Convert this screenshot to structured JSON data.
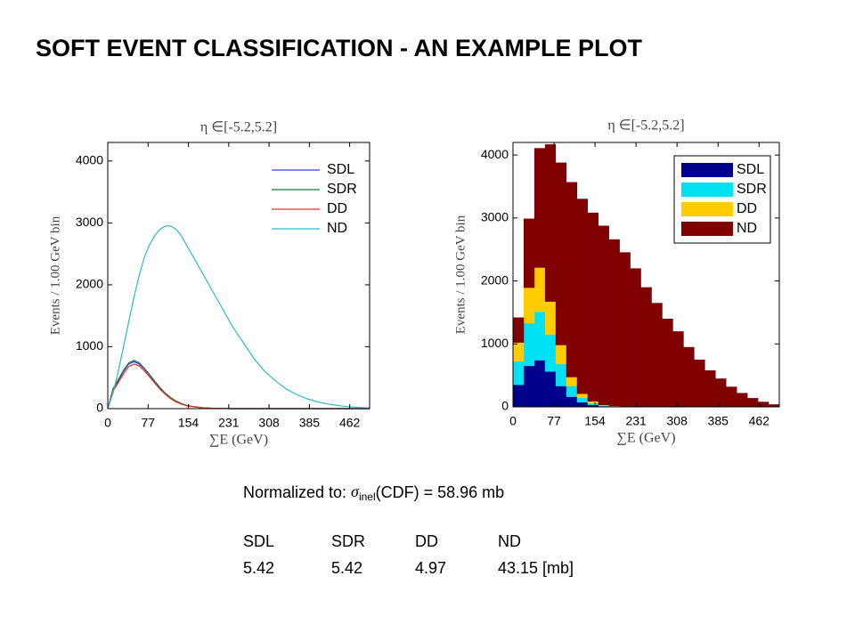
{
  "title": "SOFT EVENT CLASSIFICATION - AN EXAMPLE PLOT",
  "note": {
    "prefix": "Normalized to: ",
    "symbol": "σ",
    "subscript": "inel",
    "suffix": "(CDF) = 58.96 mb"
  },
  "table": {
    "header": [
      "SDL",
      "SDR",
      "DD",
      "ND"
    ],
    "rows": [
      [
        "5.42",
        "5.42",
        "4.97",
        "43.15 [mb]"
      ]
    ]
  },
  "chart_data": [
    {
      "type": "line",
      "title": "η ∈[-5.2,5.2]",
      "x_label": "∑E (GeV)",
      "y_label": "Events / 1.00 GeV bin",
      "x": [
        0,
        10,
        20,
        30,
        40,
        50,
        60,
        70,
        80,
        90,
        100,
        110,
        120,
        130,
        140,
        150,
        160,
        180,
        200,
        220,
        240,
        260,
        280,
        300,
        320,
        340,
        360,
        380,
        400,
        420,
        440,
        460,
        480,
        500
      ],
      "xlim": [
        0,
        500
      ],
      "xticks": [
        0,
        77,
        154,
        231,
        308,
        385,
        462
      ],
      "ylim": [
        0,
        4300
      ],
      "yticks": [
        0,
        1000,
        2000,
        3000,
        4000
      ],
      "legend": "upper right",
      "series": [
        {
          "name": "SDL",
          "color": "#3a3aff",
          "values": [
            0,
            300,
            450,
            600,
            720,
            760,
            720,
            640,
            540,
            430,
            330,
            240,
            170,
            120,
            80,
            50,
            35,
            15,
            5,
            2,
            0,
            0,
            0,
            0,
            0,
            0,
            0,
            0,
            0,
            0,
            0,
            0,
            0,
            0
          ]
        },
        {
          "name": "SDR",
          "color": "#1f7a3a",
          "values": [
            0,
            320,
            470,
            620,
            740,
            780,
            740,
            650,
            550,
            440,
            340,
            250,
            180,
            125,
            85,
            55,
            38,
            16,
            6,
            2,
            0,
            0,
            0,
            0,
            0,
            0,
            0,
            0,
            0,
            0,
            0,
            0,
            0,
            0
          ]
        },
        {
          "name": "DD",
          "color": "#e8312a",
          "values": [
            0,
            280,
            420,
            560,
            680,
            720,
            690,
            610,
            510,
            410,
            310,
            230,
            160,
            110,
            75,
            48,
            32,
            14,
            5,
            2,
            0,
            0,
            0,
            0,
            0,
            0,
            0,
            0,
            0,
            0,
            0,
            0,
            0,
            0
          ]
        },
        {
          "name": "ND",
          "color": "#2bbcc4",
          "values": [
            0,
            250,
            600,
            1000,
            1400,
            1800,
            2150,
            2450,
            2650,
            2800,
            2900,
            2950,
            2950,
            2900,
            2800,
            2650,
            2500,
            2200,
            1900,
            1600,
            1300,
            1050,
            800,
            600,
            450,
            320,
            230,
            160,
            110,
            75,
            50,
            30,
            20,
            10
          ]
        }
      ]
    },
    {
      "type": "histogram",
      "stacked": true,
      "title": "η ∈[-5.2,5.2]",
      "x_label": "∑E (GeV)",
      "y_label": "Events / 1.00 GeV bin",
      "bins": [
        0,
        20,
        40,
        60,
        80,
        100,
        120,
        140,
        160,
        180,
        200,
        220,
        240,
        260,
        280,
        300,
        320,
        340,
        360,
        380,
        400,
        420,
        440,
        460,
        480,
        500
      ],
      "xlim": [
        0,
        500
      ],
      "xticks": [
        0,
        77,
        154,
        231,
        308,
        385,
        462
      ],
      "ylim": [
        0,
        4200
      ],
      "yticks": [
        0,
        1000,
        2000,
        3000,
        4000
      ],
      "legend": "upper right",
      "series": [
        {
          "name": "SDL",
          "color": "#00008b",
          "values": [
            350,
            650,
            740,
            560,
            330,
            160,
            70,
            30,
            10,
            4,
            2,
            0,
            0,
            0,
            0,
            0,
            0,
            0,
            0,
            0,
            0,
            0,
            0,
            0,
            0
          ]
        },
        {
          "name": "SDR",
          "color": "#00e1f5",
          "values": [
            370,
            680,
            770,
            590,
            350,
            170,
            75,
            30,
            10,
            4,
            2,
            0,
            0,
            0,
            0,
            0,
            0,
            0,
            0,
            0,
            0,
            0,
            0,
            0,
            0
          ]
        },
        {
          "name": "DD",
          "color": "#ffcc00",
          "values": [
            300,
            560,
            700,
            520,
            300,
            140,
            60,
            25,
            8,
            3,
            1,
            0,
            0,
            0,
            0,
            0,
            0,
            0,
            0,
            0,
            0,
            0,
            0,
            0,
            0
          ]
        },
        {
          "name": "ND",
          "color": "#800000",
          "values": [
            400,
            1100,
            1900,
            2500,
            2900,
            3100,
            3100,
            3000,
            2850,
            2650,
            2450,
            2200,
            1900,
            1650,
            1400,
            1200,
            950,
            750,
            580,
            450,
            320,
            220,
            140,
            80,
            40
          ]
        }
      ]
    }
  ]
}
